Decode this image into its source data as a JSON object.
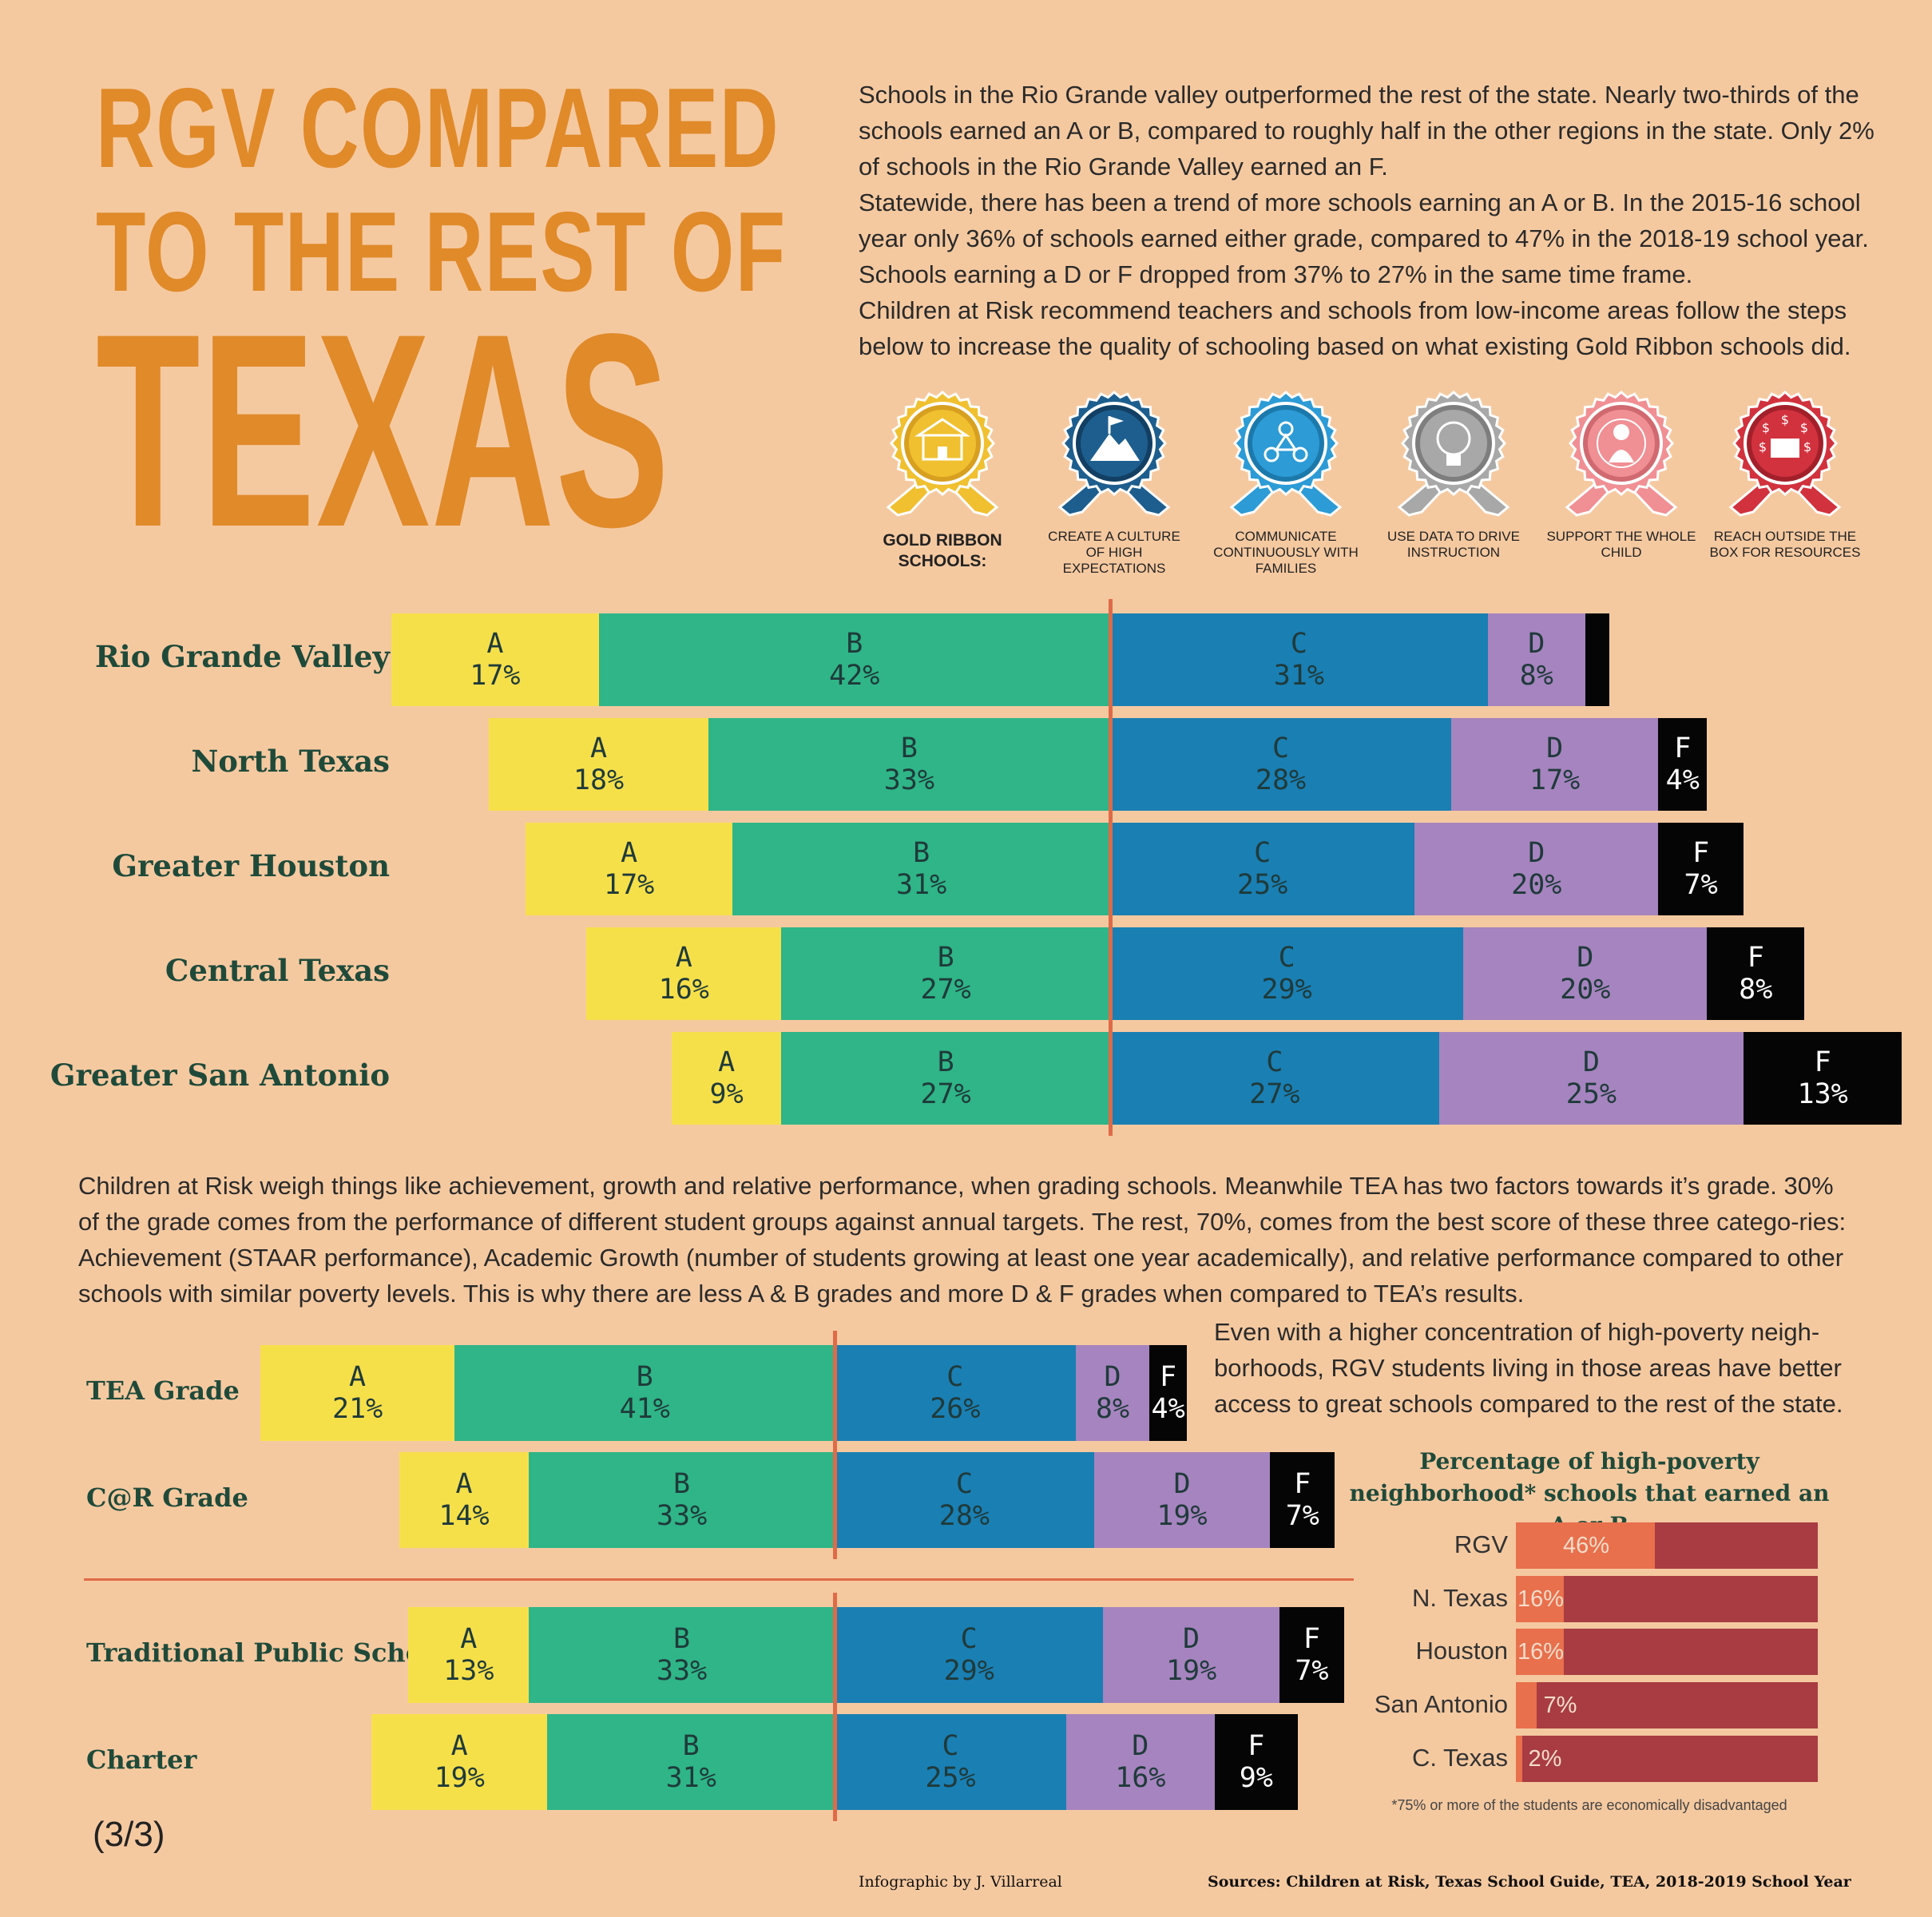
{
  "title": {
    "line1": "RGV COMPARED",
    "line2": "TO THE REST OF",
    "line3": "TEXAS"
  },
  "intro": [
    "Schools in the Rio Grande valley outperformed the rest of the state. Nearly two-thirds of the schools earned an A or B, compared to roughly half in the other regions in the state. Only 2% of schools in the Rio Grande Valley earned an F.",
    "Statewide, there has been a trend of more schools earning an A or B. In the 2015-16 school year only 36% of schools earned either grade, compared to 47% in the 2018-19 school year. Schools earning a D or F dropped from 37% to 27% in the same time frame.",
    "Children at Risk recommend teachers and schools from low-income areas follow the steps below to increase the quality of schooling based on what existing Gold Ribbon schools did."
  ],
  "badges": [
    {
      "icon": "schoolhouse-icon",
      "label": "GOLD RIBBON SCHOOLS:",
      "color": "#f0c030",
      "dark": "#d8a020"
    },
    {
      "icon": "mountain-flag-icon",
      "label": "CREATE A CULTURE OF HIGH EXPECTATIONS",
      "color": "#1d5e8e",
      "dark": "#123f63"
    },
    {
      "icon": "network-icon",
      "label": "COMMUNICATE CONTINUOUSLY WITH FAMILIES",
      "color": "#2c9bd6",
      "dark": "#1c79ab"
    },
    {
      "icon": "lightbulb-icon",
      "label": "USE DATA TO DRIVE INSTRUCTION",
      "color": "#a8a8a8",
      "dark": "#7e7e7e"
    },
    {
      "icon": "child-icon",
      "label": "SUPPORT THE WHOLE CHILD",
      "color": "#f08f94",
      "dark": "#d06a70"
    },
    {
      "icon": "money-box-icon",
      "label": "REACH OUTSIDE THE BOX FOR RESOURCES",
      "color": "#d1323e",
      "dark": "#a3202b"
    }
  ],
  "colors": {
    "A": "#f6e04a",
    "B": "#2fb587",
    "C": "#1a7fb3",
    "D": "#a684bf",
    "F": "#050505",
    "divider": "#e06a48",
    "povFill": "#e8704c",
    "povBar": "#a83c42"
  },
  "chart_data": [
    {
      "type": "bar",
      "orientation": "horizontal-diverging",
      "title": "",
      "categories": [
        "Rio Grande Valley",
        "North Texas",
        "Greater Houston",
        "Central Texas",
        "Greater San Antonio"
      ],
      "grades": [
        "A",
        "B",
        "C",
        "D",
        "F"
      ],
      "values": [
        {
          "A": 17,
          "B": 42,
          "C": 31,
          "D": 8,
          "F": 2
        },
        {
          "A": 18,
          "B": 33,
          "C": 28,
          "D": 17,
          "F": 4
        },
        {
          "A": 17,
          "B": 31,
          "C": 25,
          "D": 20,
          "F": 7
        },
        {
          "A": 16,
          "B": 27,
          "C": 29,
          "D": 20,
          "F": 8
        },
        {
          "A": 9,
          "B": 27,
          "C": 27,
          "D": 25,
          "F": 13
        }
      ],
      "labels_shown": [
        {
          "A": "17%",
          "B": "42%",
          "C": "31%",
          "D": "8%",
          "F": ""
        },
        {
          "A": "18%",
          "B": "33%",
          "C": "28%",
          "D": "17%",
          "F": "4%"
        },
        {
          "A": "17%",
          "B": "31%",
          "C": "25%",
          "D": "20%",
          "F": "7%"
        },
        {
          "A": "16%",
          "B": "27%",
          "C": "29%",
          "D": "20%",
          "F": "8%"
        },
        {
          "A": "9%",
          "B": "27%",
          "C": "27%",
          "D": "25%",
          "F": "13%"
        }
      ]
    },
    {
      "type": "bar",
      "orientation": "horizontal-diverging",
      "title": "",
      "categories": [
        "TEA Grade",
        "C@R Grade"
      ],
      "grades": [
        "A",
        "B",
        "C",
        "D",
        "F"
      ],
      "values": [
        {
          "A": 21,
          "B": 41,
          "C": 26,
          "D": 8,
          "F": 4
        },
        {
          "A": 14,
          "B": 33,
          "C": 28,
          "D": 19,
          "F": 7
        }
      ],
      "labels_shown": [
        {
          "A": "21%",
          "B": "41%",
          "C": "26%",
          "D": "8%",
          "F": "4%"
        },
        {
          "A": "14%",
          "B": "33%",
          "C": "28%",
          "D": "19%",
          "F": "7%"
        }
      ]
    },
    {
      "type": "bar",
      "orientation": "horizontal-diverging",
      "title": "",
      "categories": [
        "Traditional Public School",
        "Charter"
      ],
      "grades": [
        "A",
        "B",
        "C",
        "D",
        "F"
      ],
      "values": [
        {
          "A": 13,
          "B": 33,
          "C": 29,
          "D": 19,
          "F": 7
        },
        {
          "A": 19,
          "B": 31,
          "C": 25,
          "D": 16,
          "F": 9
        }
      ],
      "labels_shown": [
        {
          "A": "13%",
          "B": "33%",
          "C": "29%",
          "D": "19%",
          "F": "7%"
        },
        {
          "A": "19%",
          "B": "31%",
          "C": "25%",
          "D": "16%",
          "F": "9%"
        }
      ]
    },
    {
      "type": "bar",
      "orientation": "horizontal",
      "title": "Percentage of high-poverty neighborhood* schools that earned an A or B",
      "categories": [
        "RGV",
        "N. Texas",
        "Houston",
        "San Antonio",
        "C. Texas"
      ],
      "values": [
        46,
        16,
        16,
        7,
        2
      ],
      "value_labels": [
        "46%",
        "16%",
        "16%",
        "7%",
        "2%"
      ],
      "xlim": [
        0,
        100
      ],
      "footnote": "*75% or more of the students are economically disadvantaged"
    }
  ],
  "middle_text": "Children at Risk weigh things like achievement, growth and relative performance, when grading schools. Meanwhile TEA has two factors towards it’s grade. 30% of the grade comes from the performance of different student groups against annual targets. The rest, 70%, comes from the best score of these three catego-ries:  Achievement (STAAR performance), Academic Growth (number of students growing at least one year academically), and relative performance compared to other schools with similar poverty levels. This is why there are less A & B grades and more D & F grades when compared to TEA’s results.",
  "side_text": "Even with a higher concentration of high-poverty neigh-borhoods, RGV students living in those areas have better access to great schools compared to the rest of the state.",
  "page_marker": "(3/3)",
  "credit": "Infographic by J. Villarreal",
  "sources": "Sources: Children at Risk, Texas School Guide, TEA, 2018-2019 School Year"
}
